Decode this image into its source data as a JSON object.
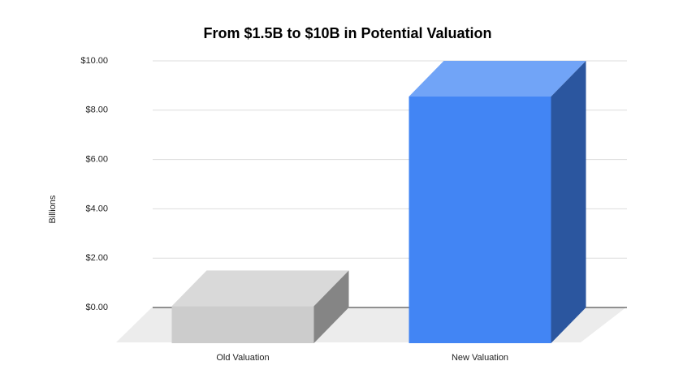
{
  "chart_data": {
    "type": "bar3d",
    "title": "From $1.5B to $10B in Potential Valuation",
    "y_label": "Billions",
    "categories": [
      "Old Valuation",
      "New Valuation"
    ],
    "values": [
      1.5,
      10
    ],
    "colors": [
      "#cccccc",
      "#4285f4"
    ],
    "ylim": [
      0,
      10
    ],
    "yticks": [
      {
        "value": 0,
        "label": "$0.00"
      },
      {
        "value": 2,
        "label": "$2.00"
      },
      {
        "value": 4,
        "label": "$4.00"
      },
      {
        "value": 6,
        "label": "$6.00"
      },
      {
        "value": 8,
        "label": "$8.00"
      },
      {
        "value": 10,
        "label": "$10.00"
      }
    ],
    "grid": true
  }
}
